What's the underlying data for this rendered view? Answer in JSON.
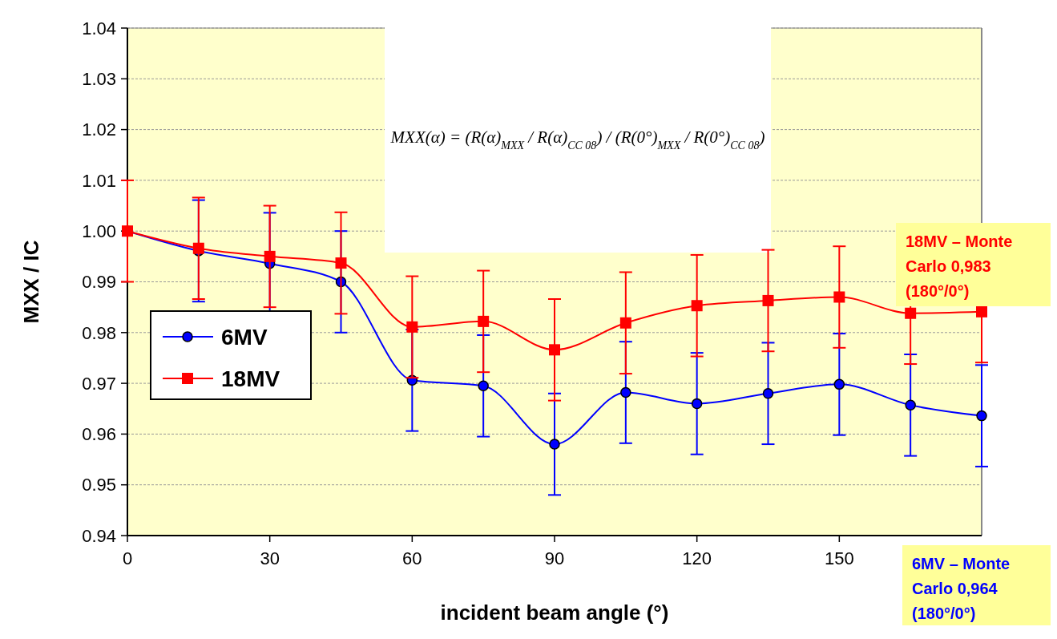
{
  "chart_data": {
    "type": "line",
    "xlabel": "incident beam angle (°)",
    "ylabel": "MXX / IC",
    "x": [
      0,
      15,
      30,
      45,
      60,
      75,
      90,
      105,
      120,
      135,
      150,
      165,
      180
    ],
    "xlim": [
      0,
      180
    ],
    "xticks": [
      0,
      30,
      60,
      90,
      120,
      150
    ],
    "ylim": [
      0.94,
      1.04
    ],
    "yticks": [
      0.94,
      0.95,
      0.96,
      0.97,
      0.98,
      0.99,
      {
        "value": 1.0,
        "label": "1.00"
      },
      1.01,
      1.02,
      1.03,
      1.04
    ],
    "grid": "y",
    "legend": "left",
    "line_style": "solid",
    "series": [
      {
        "name": "6MV",
        "color": "#0000ff",
        "marker": "circle",
        "values": [
          1.0,
          0.9961,
          0.9936,
          0.99,
          0.9706,
          0.9695,
          0.958,
          0.9682,
          0.966,
          0.968,
          0.9698,
          0.9657,
          0.9636
        ],
        "errors": [
          null,
          0.01,
          0.01,
          0.01,
          0.01,
          0.01,
          0.01,
          0.01,
          0.01,
          0.01,
          0.01,
          0.01,
          0.01
        ]
      },
      {
        "name": "18MV",
        "color": "#ff0000",
        "marker": "square",
        "values": [
          1.0,
          0.9966,
          0.995,
          0.9937,
          0.9811,
          0.9822,
          0.9766,
          0.9819,
          0.9853,
          0.9863,
          0.987,
          0.9838,
          0.9841
        ],
        "errors": [
          0.01,
          0.01,
          0.01,
          0.01,
          0.01,
          0.01,
          0.01,
          0.01,
          0.01,
          0.01,
          0.01,
          0.01,
          0.01
        ]
      }
    ],
    "annotations": [
      "MXX(α) = (R(α)$_{MXX}$ / R(α)$_{CC 08}$) / (R(0°)$_{MXX}$ / R(0°)$_{CC 08}$)",
      "18MV –  Monte Carlo 0,983 (180°/0°)",
      "6MV –  Monte Carlo 0,964 (180°/0°)"
    ]
  }
}
